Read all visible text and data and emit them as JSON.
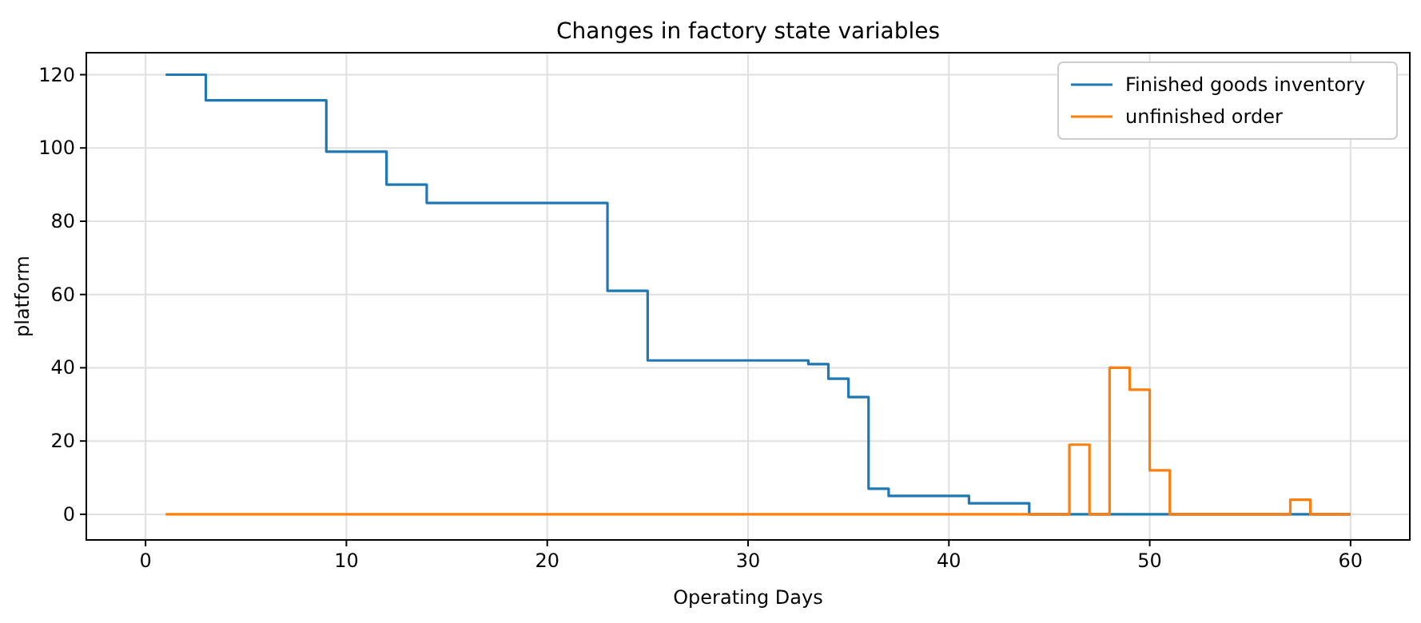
{
  "chart_data": {
    "type": "step",
    "title": "Changes in factory state variables",
    "xlabel": "Operating Days",
    "ylabel": "platform",
    "x": [
      1,
      2,
      3,
      4,
      5,
      6,
      7,
      8,
      9,
      10,
      11,
      12,
      13,
      14,
      15,
      16,
      17,
      18,
      19,
      20,
      21,
      22,
      23,
      24,
      25,
      26,
      27,
      28,
      29,
      30,
      31,
      32,
      33,
      34,
      35,
      36,
      37,
      38,
      39,
      40,
      41,
      42,
      43,
      44,
      45,
      46,
      47,
      48,
      49,
      50,
      51,
      52,
      53,
      54,
      55,
      56,
      57,
      58,
      59,
      60
    ],
    "series": [
      {
        "name": "Finished goods inventory",
        "color": "#1f77b4",
        "values": [
          120,
          120,
          113,
          113,
          113,
          113,
          113,
          113,
          99,
          99,
          99,
          90,
          90,
          85,
          85,
          85,
          85,
          85,
          85,
          85,
          85,
          85,
          61,
          61,
          42,
          42,
          42,
          42,
          42,
          42,
          42,
          42,
          41,
          37,
          32,
          7,
          5,
          5,
          5,
          5,
          3,
          3,
          3,
          0,
          0,
          0,
          0,
          0,
          0,
          0,
          0,
          0,
          0,
          0,
          0,
          0,
          0,
          0,
          0,
          0
        ]
      },
      {
        "name": "unfinished order",
        "color": "#ff7f0e",
        "values": [
          0,
          0,
          0,
          0,
          0,
          0,
          0,
          0,
          0,
          0,
          0,
          0,
          0,
          0,
          0,
          0,
          0,
          0,
          0,
          0,
          0,
          0,
          0,
          0,
          0,
          0,
          0,
          0,
          0,
          0,
          0,
          0,
          0,
          0,
          0,
          0,
          0,
          0,
          0,
          0,
          0,
          0,
          0,
          0,
          0,
          19,
          0,
          40,
          34,
          12,
          0,
          0,
          0,
          0,
          0,
          0,
          4,
          0,
          0,
          0
        ]
      }
    ],
    "xlim": [
      -2.95,
      62.95
    ],
    "xticks": [
      0,
      10,
      20,
      30,
      40,
      50,
      60
    ],
    "ylim": [
      -7,
      126
    ],
    "yticks": [
      0,
      20,
      40,
      60,
      80,
      100,
      120
    ],
    "grid": true,
    "legend": "top right"
  }
}
